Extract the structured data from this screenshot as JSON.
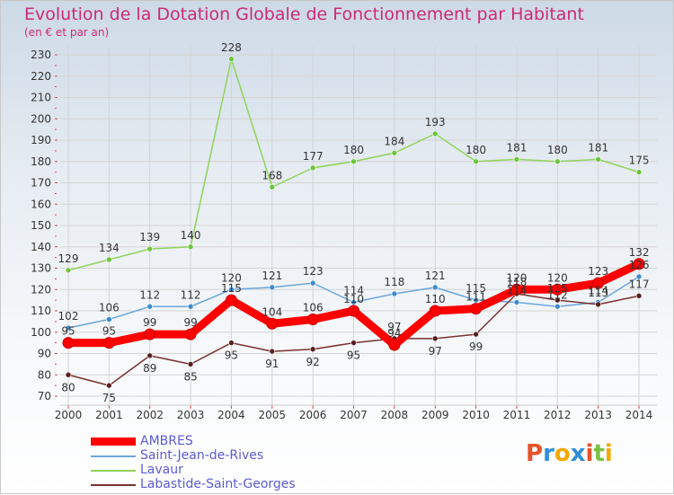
{
  "header": {
    "title": "Evolution de la Dotation Globale de Fonctionnement par Habitant",
    "subtitle": "(en € et par an)"
  },
  "logo": {
    "text": "Proxiti",
    "letters": [
      "P",
      "r",
      "o",
      "x",
      "i",
      "t",
      "i"
    ]
  },
  "chart_data": {
    "type": "line",
    "title": "Evolution de la Dotation Globale de Fonctionnement par Habitant",
    "subtitle": "(en € et par an)",
    "xlabel": "",
    "ylabel": "",
    "ylim": [
      70,
      230
    ],
    "yticks": [
      70,
      80,
      90,
      100,
      110,
      120,
      130,
      140,
      150,
      160,
      170,
      180,
      190,
      200,
      210,
      220,
      230
    ],
    "categories": [
      "2000",
      "2001",
      "2002",
      "2003",
      "2004",
      "2005",
      "2006",
      "2007",
      "2008",
      "2009",
      "2010",
      "2011",
      "2012",
      "2013",
      "2014"
    ],
    "grid": true,
    "legend": "bottom-left",
    "series": [
      {
        "name": "Lavaur",
        "color": "#8fd35a",
        "marker_color": "#6cc63a",
        "values": [
          129,
          134,
          139,
          140,
          228,
          168,
          177,
          180,
          184,
          193,
          180,
          181,
          180,
          181,
          175
        ],
        "labels": [
          "129",
          "134",
          "139",
          "140",
          "228",
          "168",
          "177",
          "180",
          "184",
          "193",
          "180",
          "181",
          "180",
          "181",
          "175"
        ]
      },
      {
        "name": "Saint-Jean-de-Rives",
        "color": "#6aa6dc",
        "marker_color": "#3d8ccf",
        "values": [
          102,
          106,
          112,
          112,
          120,
          121,
          123,
          114,
          118,
          121,
          115,
          114,
          112,
          114,
          126
        ],
        "labels": [
          "102",
          "106",
          "112",
          "112",
          "120",
          "121",
          "123",
          "114",
          "118",
          "121",
          "115",
          "114",
          "112",
          "114",
          "126"
        ]
      },
      {
        "name": "Labastide-Saint-Georges",
        "color": "#7a3030",
        "marker_color": "#5a1f1f",
        "values": [
          80,
          75,
          89,
          85,
          95,
          91,
          92,
          95,
          97,
          97,
          99,
          118,
          115,
          113,
          117
        ],
        "labels": [
          "80",
          "75",
          "89",
          "85",
          "95",
          "91",
          "92",
          "95",
          "97",
          "97",
          "99",
          "118",
          "115",
          "113",
          "117"
        ]
      },
      {
        "name": "AMBRES",
        "color": "#ff0000",
        "marker_color": "#ff0000",
        "values": [
          95,
          95,
          99,
          99,
          115,
          104,
          106,
          110,
          94,
          110,
          111,
          120,
          120,
          123,
          132
        ],
        "labels": [
          "95",
          "95",
          "99",
          "99",
          "115",
          "104",
          "106",
          "110",
          "94",
          "110",
          "111",
          "120",
          "120",
          "123",
          "132"
        ]
      }
    ]
  },
  "legend": {
    "items": [
      {
        "name": "AMBRES",
        "color": "#ff0000",
        "thickness": "thick"
      },
      {
        "name": "Saint-Jean-de-Rives",
        "color": "#6aa6dc",
        "thickness": "thin"
      },
      {
        "name": "Lavaur",
        "color": "#8fd35a",
        "thickness": "thin"
      },
      {
        "name": "Labastide-Saint-Georges",
        "color": "#7a3030",
        "thickness": "thin"
      }
    ]
  }
}
